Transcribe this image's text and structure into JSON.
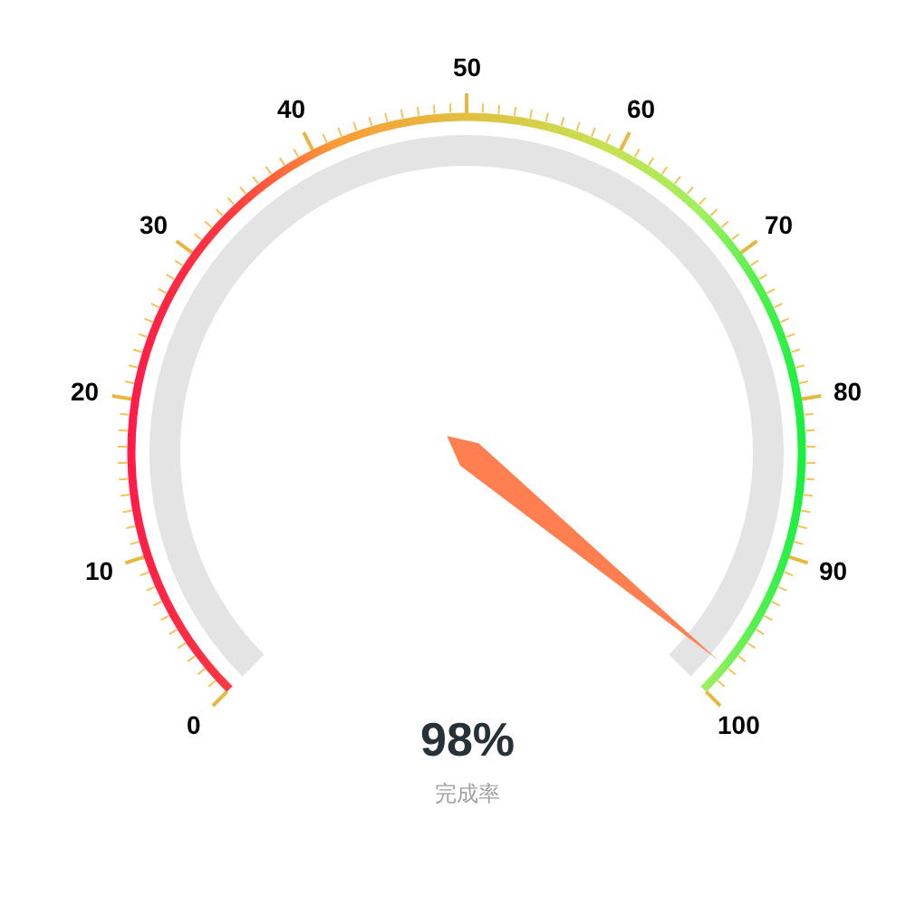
{
  "chart_data": {
    "type": "other",
    "categories": [
      "完成率"
    ],
    "values": [
      98
    ],
    "value_labels": [
      "98%"
    ],
    "color": "#ff7f50",
    "annotations": [
      "0",
      "10",
      "20",
      "30",
      "40",
      "50",
      "60",
      "70",
      "80",
      "90",
      "100"
    ]
  }
}
